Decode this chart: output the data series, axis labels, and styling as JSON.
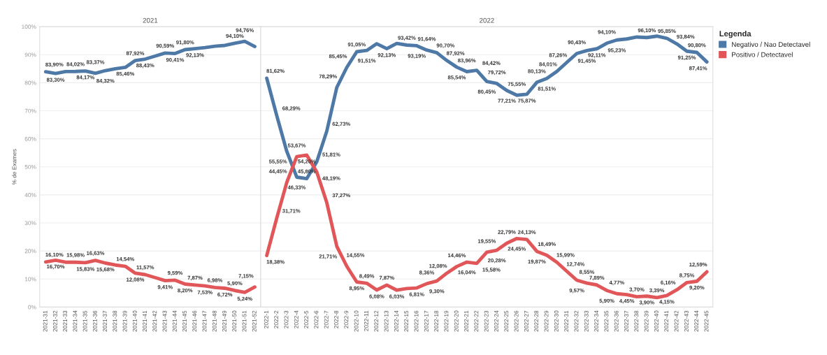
{
  "chart_data": [
    {
      "type": "line",
      "title": "2021",
      "ylabel": "% de Exames",
      "ylim": [
        0,
        100
      ],
      "yticks": [
        {
          "value": 0,
          "label": "0%"
        },
        {
          "value": 10,
          "label": "10%"
        },
        {
          "value": 20,
          "label": "20%"
        },
        {
          "value": 30,
          "label": "30%"
        },
        {
          "value": 40,
          "label": "40%"
        },
        {
          "value": 50,
          "label": "50%"
        },
        {
          "value": 60,
          "label": "60%"
        },
        {
          "value": 70,
          "label": "70%"
        },
        {
          "value": 80,
          "label": "80%"
        },
        {
          "value": 90,
          "label": "90%"
        },
        {
          "value": 100,
          "label": "100%"
        }
      ],
      "grid": "y",
      "line_style": "solid",
      "categories": [
        "2021-31",
        "2021-32",
        "2021-33",
        "2021-34",
        "2021-35",
        "2021-36",
        "2021-37",
        "2021-38",
        "2021-39",
        "2021-40",
        "2021-41",
        "2021-42",
        "2021-43",
        "2021-44",
        "2021-45",
        "2021-46",
        "2021-47",
        "2021-48",
        "2021-49",
        "2021-50",
        "2021-51",
        "2021-52"
      ],
      "series": [
        {
          "color": "#4e79a7",
          "values": [
            83.9,
            83.3,
            84.0,
            84.02,
            84.17,
            83.37,
            84.32,
            85.0,
            85.46,
            87.92,
            88.43,
            89.5,
            90.59,
            90.41,
            91.8,
            92.13,
            92.5,
            93.0,
            93.3,
            94.1,
            94.76,
            92.9
          ],
          "value_labels": [
            "83,90%",
            "83,30%",
            null,
            "84,02%",
            "84,17%",
            "83,37%",
            "84,32%",
            null,
            "85,46%",
            "87,92%",
            "88,43%",
            null,
            "90,59%",
            "90,41%",
            "91,80%",
            "92,13%",
            null,
            null,
            null,
            "94,10%",
            "94,76%",
            null
          ]
        },
        {
          "color": "#e15759",
          "values": [
            16.1,
            16.7,
            16.0,
            15.98,
            15.83,
            16.63,
            15.68,
            15.0,
            14.54,
            12.08,
            11.57,
            10.5,
            9.41,
            9.59,
            8.2,
            7.87,
            7.53,
            6.98,
            6.72,
            5.9,
            5.24,
            7.15
          ],
          "value_labels": [
            "16,10%",
            "16,70%",
            null,
            "15,98%",
            "15,83%",
            "16,63%",
            "15,68%",
            null,
            "14,54%",
            "12,08%",
            "11,57%",
            null,
            "9,41%",
            "9,59%",
            "8,20%",
            "7,87%",
            "7,53%",
            "6,98%",
            "6,72%",
            "5,90%",
            "5,24%",
            "7,15%"
          ]
        }
      ]
    },
    {
      "type": "line",
      "title": "2022",
      "ylim": [
        0,
        100
      ],
      "yticks": [
        0,
        10,
        20,
        30,
        40,
        50,
        60,
        70,
        80,
        90,
        100
      ],
      "tick_labels": "x",
      "grid": "y",
      "line_style": "solid",
      "legend": "right",
      "legend_title": "Legenda",
      "categories": [
        "2022-1",
        "2022-2",
        "2022-3",
        "2022-4",
        "2022-5",
        "2022-6",
        "2022-7",
        "2022-8",
        "2022-9",
        "2022-10",
        "2022-11",
        "2022-12",
        "2022-13",
        "2022-14",
        "2022-15",
        "2022-16",
        "2022-17",
        "2022-18",
        "2022-19",
        "2022-20",
        "2022-21",
        "2022-22",
        "2022-23",
        "2022-24",
        "2022-25",
        "2022-26",
        "2022-27",
        "2022-28",
        "2022-29",
        "2022-30",
        "2022-31",
        "2022-32",
        "2022-33",
        "2022-34",
        "2022-35",
        "2022-36",
        "2022-37",
        "2022-38",
        "2022-39",
        "2022-40",
        "2022-41",
        "2022-42",
        "2022-43",
        "2022-44",
        "2022-45"
      ],
      "series": [
        {
          "name": "Negativo / Nao Detectavel",
          "color": "#4e79a7",
          "values": [
            81.62,
            68.29,
            55.55,
            46.33,
            45.8,
            51.81,
            62.73,
            78.29,
            85.45,
            91.05,
            91.51,
            93.9,
            92.13,
            94.0,
            93.42,
            93.19,
            91.64,
            90.7,
            87.92,
            85.54,
            83.96,
            84.42,
            80.45,
            79.72,
            77.21,
            75.55,
            75.87,
            80.13,
            81.51,
            84.01,
            87.26,
            90.43,
            91.45,
            92.11,
            94.1,
            95.23,
            95.6,
            96.3,
            96.1,
            96.6,
            95.85,
            93.84,
            91.25,
            90.8,
            87.41
          ],
          "value_labels": [
            "81,62%",
            "68,29%",
            "55,55%",
            "46,33%",
            "45,80%",
            "51,81%",
            "62,73%",
            "78,29%",
            "85,45%",
            "91,05%",
            "91,51%",
            null,
            "92,13%",
            null,
            "93,42%",
            "93,19%",
            "91,64%",
            "90,70%",
            "87,92%",
            "85,54%",
            "83,96%",
            "84,42%",
            "80,45%",
            "79,72%",
            "77,21%",
            "75,55%",
            "75,87%",
            "80,13%",
            "81,51%",
            "84,01%",
            "87,26%",
            "90,43%",
            "91,45%",
            "92,11%",
            "94,10%",
            "95,23%",
            null,
            null,
            "96,10%",
            null,
            "95,85%",
            "93,84%",
            "91,25%",
            "90,80%",
            "87,41%"
          ]
        },
        {
          "name": "Positivo / Detectavel",
          "color": "#e15759",
          "values": [
            18.38,
            31.71,
            44.45,
            53.67,
            54.2,
            48.19,
            37.27,
            21.71,
            14.55,
            8.95,
            8.49,
            6.08,
            7.87,
            6.03,
            6.6,
            6.81,
            8.36,
            9.3,
            12.08,
            14.46,
            16.04,
            15.58,
            19.55,
            20.28,
            22.79,
            24.45,
            24.13,
            19.87,
            18.49,
            15.99,
            12.74,
            9.57,
            8.55,
            7.89,
            5.9,
            4.77,
            4.45,
            3.7,
            3.9,
            3.39,
            4.15,
            6.16,
            8.75,
            9.2,
            12.59
          ],
          "value_labels": [
            "18,38%",
            "31,71%",
            "44,45%",
            "53,67%",
            "54,20%",
            "48,19%",
            "37,27%",
            "21,71%",
            "14,55%",
            "8,95%",
            "8,49%",
            "6,08%",
            "7,87%",
            "6,03%",
            null,
            "6,81%",
            "8,36%",
            "9,30%",
            "12,08%",
            "14,46%",
            "16,04%",
            "15,58%",
            "19,55%",
            "20,28%",
            "22,79%",
            "24,45%",
            "24,13%",
            "19,87%",
            "18,49%",
            "15,99%",
            "12,74%",
            "9,57%",
            "8,55%",
            "7,89%",
            "5,90%",
            "4,77%",
            "4,45%",
            "3,70%",
            "3,90%",
            "3,39%",
            "4,15%",
            "6,16%",
            "8,75%",
            "9,20%",
            "12,59%"
          ]
        }
      ]
    }
  ]
}
